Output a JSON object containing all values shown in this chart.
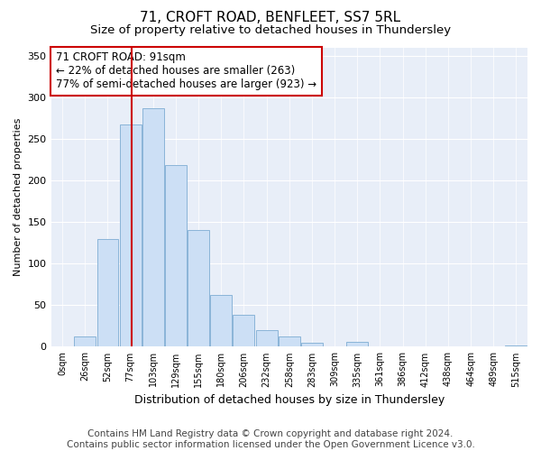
{
  "title1": "71, CROFT ROAD, BENFLEET, SS7 5RL",
  "title2": "Size of property relative to detached houses in Thundersley",
  "xlabel": "Distribution of detached houses by size in Thundersley",
  "ylabel": "Number of detached properties",
  "bar_labels": [
    "0sqm",
    "26sqm",
    "52sqm",
    "77sqm",
    "103sqm",
    "129sqm",
    "155sqm",
    "180sqm",
    "206sqm",
    "232sqm",
    "258sqm",
    "283sqm",
    "309sqm",
    "335sqm",
    "361sqm",
    "386sqm",
    "412sqm",
    "438sqm",
    "464sqm",
    "489sqm",
    "515sqm"
  ],
  "bar_values": [
    0,
    12,
    130,
    267,
    287,
    218,
    140,
    62,
    38,
    20,
    12,
    5,
    0,
    6,
    0,
    0,
    0,
    0,
    0,
    0,
    2
  ],
  "bar_color": "#ccdff5",
  "bar_edge_color": "#8ab4d8",
  "vline_color": "#cc0000",
  "annotation_text": "71 CROFT ROAD: 91sqm\n← 22% of detached houses are smaller (263)\n77% of semi-detached houses are larger (923) →",
  "annotation_box_color": "#ffffff",
  "annotation_box_edge_color": "#cc0000",
  "ylim": [
    0,
    360
  ],
  "yticks": [
    0,
    50,
    100,
    150,
    200,
    250,
    300,
    350
  ],
  "fig_bg_color": "#ffffff",
  "plot_bg_color": "#e8eef8",
  "grid_color": "#ffffff",
  "footer_text": "Contains HM Land Registry data © Crown copyright and database right 2024.\nContains public sector information licensed under the Open Government Licence v3.0.",
  "title1_fontsize": 11,
  "title2_fontsize": 9.5,
  "xlabel_fontsize": 9,
  "ylabel_fontsize": 8,
  "annotation_fontsize": 8.5,
  "footer_fontsize": 7.5
}
